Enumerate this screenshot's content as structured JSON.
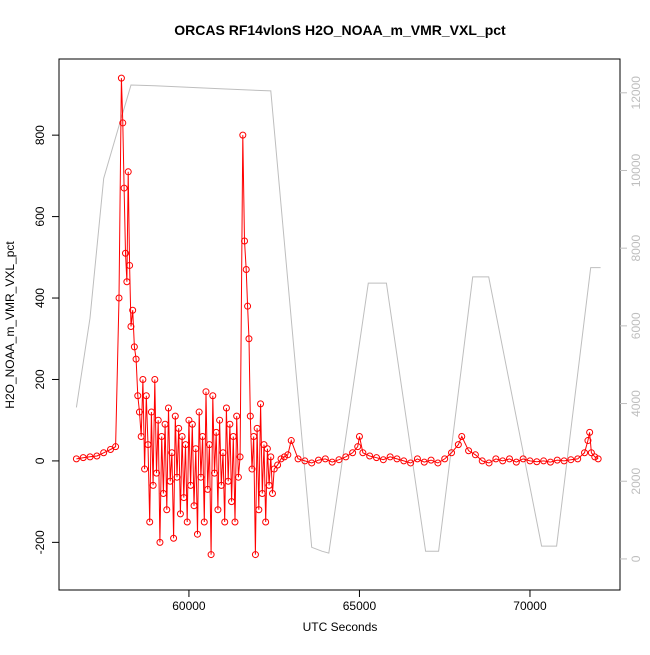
{
  "chart_data": {
    "type": "line",
    "title": "ORCAS RF14vlonS H2O_NOAA_m_VMR_VXL_pct",
    "xlabel": "UTC Seconds",
    "ylabel": "H2O_NOAA_m_VMR_VXL_pct",
    "xlim": [
      56190,
      72640
    ],
    "ylim": [
      -317,
      987
    ],
    "y2lim": [
      -800,
      12870
    ],
    "xticks": [
      60000,
      65000,
      70000
    ],
    "yticks": [
      -200,
      0,
      200,
      400,
      600,
      800
    ],
    "y2ticks": [
      0,
      2000,
      4000,
      6000,
      8000,
      10000,
      12000
    ],
    "series": [
      {
        "color": "#bebebe",
        "axis": "y2",
        "x": [
          56700,
          57100,
          57500,
          57900,
          58300,
          59000,
          61000,
          62400,
          63600,
          63900,
          64100,
          65260,
          65790,
          66940,
          67320,
          68320,
          68790,
          70340,
          70780,
          71780,
          72070
        ],
        "values": [
          3900,
          6200,
          9800,
          11000,
          12200,
          12180,
          12100,
          12050,
          300,
          200,
          150,
          7100,
          7100,
          200,
          200,
          7260,
          7260,
          330,
          330,
          7500,
          7500
        ]
      },
      {
        "color": "#ff0000",
        "markers": true,
        "x": [
          56700,
          56900,
          57100,
          57300,
          57500,
          57700,
          57850,
          57950,
          58020,
          58060,
          58100,
          58140,
          58180,
          58220,
          58260,
          58300,
          58350,
          58400,
          58450,
          58500,
          58550,
          58600,
          58650,
          58700,
          58750,
          58800,
          58850,
          58900,
          58950,
          59000,
          59050,
          59100,
          59150,
          59200,
          59250,
          59300,
          59350,
          59400,
          59450,
          59500,
          59550,
          59600,
          59650,
          59700,
          59750,
          59800,
          59850,
          59900,
          59950,
          60000,
          60050,
          60100,
          60150,
          60200,
          60250,
          60300,
          60350,
          60400,
          60450,
          60500,
          60550,
          60600,
          60650,
          60700,
          60750,
          60800,
          60850,
          60900,
          60950,
          61000,
          61050,
          61100,
          61150,
          61200,
          61250,
          61300,
          61350,
          61400,
          61450,
          61500,
          61580,
          61630,
          61680,
          61720,
          61760,
          61800,
          61850,
          61900,
          61950,
          62000,
          62050,
          62100,
          62150,
          62200,
          62250,
          62300,
          62350,
          62400,
          62450,
          62500,
          62600,
          62700,
          62800,
          62900,
          63000,
          63200,
          63400,
          63600,
          63800,
          64000,
          64200,
          64400,
          64600,
          64800,
          64950,
          65000,
          65100,
          65300,
          65500,
          65700,
          65900,
          66100,
          66300,
          66500,
          66700,
          66900,
          67100,
          67300,
          67500,
          67700,
          67900,
          68000,
          68200,
          68400,
          68600,
          68800,
          69000,
          69200,
          69400,
          69600,
          69800,
          70000,
          70200,
          70400,
          70600,
          70800,
          71000,
          71200,
          71400,
          71600,
          71700,
          71750,
          71800,
          71900,
          72000
        ],
        "values": [
          5,
          8,
          10,
          12,
          20,
          28,
          35,
          400,
          940,
          830,
          670,
          510,
          440,
          710,
          480,
          330,
          370,
          280,
          250,
          160,
          120,
          60,
          200,
          -20,
          160,
          40,
          -150,
          120,
          -60,
          200,
          -30,
          100,
          -200,
          60,
          -80,
          90,
          -120,
          130,
          -50,
          20,
          -190,
          110,
          -40,
          80,
          -130,
          60,
          -90,
          40,
          -150,
          100,
          -60,
          90,
          -110,
          30,
          -180,
          120,
          -40,
          60,
          -150,
          170,
          -70,
          40,
          -230,
          160,
          -30,
          70,
          -120,
          100,
          -60,
          20,
          -150,
          130,
          -50,
          90,
          -100,
          60,
          -150,
          110,
          -40,
          10,
          800,
          540,
          470,
          380,
          300,
          110,
          -20,
          60,
          -230,
          80,
          -120,
          140,
          -80,
          40,
          -150,
          30,
          -60,
          10,
          -80,
          -20,
          -10,
          5,
          10,
          15,
          50,
          5,
          0,
          -5,
          2,
          5,
          -3,
          3,
          10,
          20,
          35,
          60,
          20,
          12,
          8,
          3,
          10,
          5,
          0,
          -5,
          5,
          -3,
          2,
          -5,
          5,
          20,
          40,
          60,
          25,
          15,
          0,
          -5,
          5,
          0,
          5,
          -3,
          5,
          0,
          -2,
          0,
          -3,
          2,
          0,
          3,
          5,
          20,
          50,
          70,
          20,
          10,
          5
        ]
      }
    ]
  }
}
